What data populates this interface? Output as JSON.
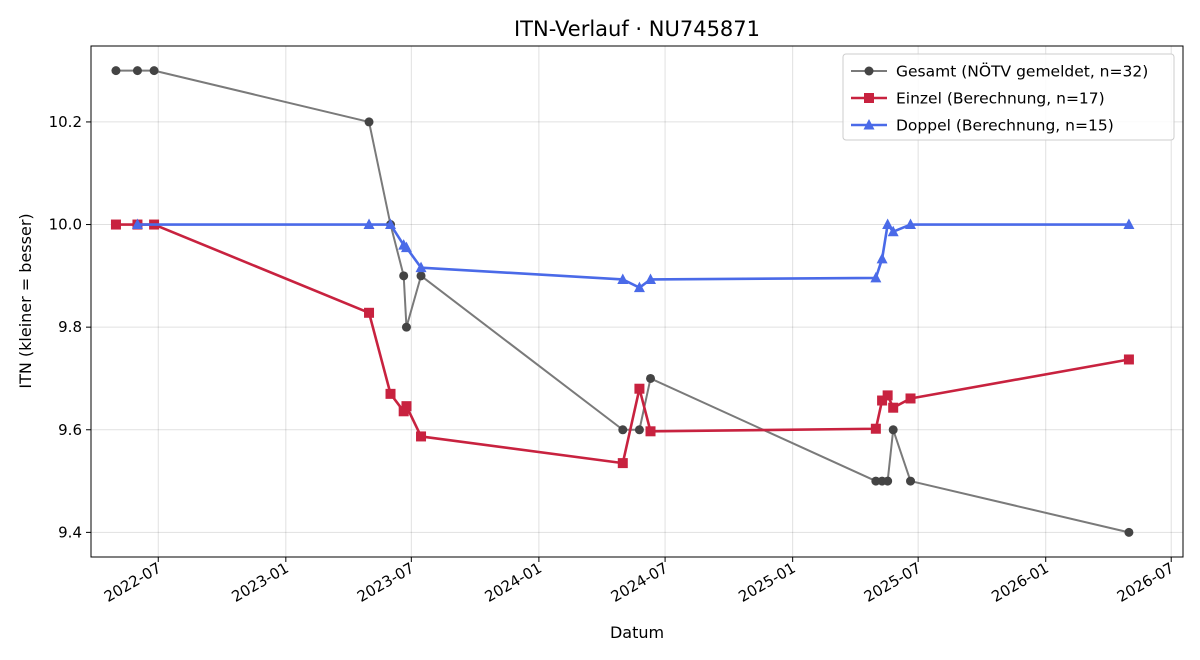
{
  "chart_data": {
    "type": "line",
    "title": "ITN-Verlauf · NU745871",
    "xlabel": "Datum",
    "ylabel": "ITN  (kleiner = besser)",
    "x_axis": "date",
    "xlim": [
      "2022-03-26",
      "2026-07-18"
    ],
    "ylim": [
      9.352,
      10.348
    ],
    "yticks": [
      "9.4",
      "9.6",
      "9.8",
      "10.0",
      "10.2"
    ],
    "xticks": [
      "2022-07",
      "2023-01",
      "2023-07",
      "2024-01",
      "2024-07",
      "2025-01",
      "2025-07",
      "2026-01",
      "2026-07"
    ],
    "grid": true,
    "legend_position": "top-right",
    "series": [
      {
        "name": "Gesamt (NÖTV gemeldet, n=32)",
        "color": "#555555",
        "marker": "circle",
        "points": [
          [
            "2022-05-01",
            10.3
          ],
          [
            "2022-06-01",
            10.3
          ],
          [
            "2022-06-25",
            10.3
          ],
          [
            "2023-05-01",
            10.2
          ],
          [
            "2023-06-01",
            10.0
          ],
          [
            "2023-06-20",
            9.9
          ],
          [
            "2023-06-24",
            9.8
          ],
          [
            "2023-07-15",
            9.9
          ],
          [
            "2024-05-01",
            9.6
          ],
          [
            "2024-05-25",
            9.6
          ],
          [
            "2024-06-10",
            9.7
          ],
          [
            "2025-05-01",
            9.5
          ],
          [
            "2025-05-10",
            9.5
          ],
          [
            "2025-05-18",
            9.5
          ],
          [
            "2025-05-26",
            9.6
          ],
          [
            "2025-06-20",
            9.5
          ],
          [
            "2026-05-01",
            9.4
          ]
        ]
      },
      {
        "name": "Einzel (Berechnung, n=17)",
        "color": "#c8223f",
        "marker": "square",
        "points": [
          [
            "2022-05-01",
            10.0
          ],
          [
            "2022-06-01",
            10.0
          ],
          [
            "2022-06-25",
            10.0
          ],
          [
            "2023-05-01",
            9.828
          ],
          [
            "2023-06-01",
            9.67
          ],
          [
            "2023-06-20",
            9.636
          ],
          [
            "2023-06-24",
            9.646
          ],
          [
            "2023-07-15",
            9.587
          ],
          [
            "2024-05-01",
            9.535
          ],
          [
            "2024-05-25",
            9.68
          ],
          [
            "2024-06-10",
            9.597
          ],
          [
            "2025-05-01",
            9.602
          ],
          [
            "2025-05-10",
            9.657
          ],
          [
            "2025-05-18",
            9.667
          ],
          [
            "2025-05-26",
            9.643
          ],
          [
            "2025-06-20",
            9.661
          ],
          [
            "2026-05-01",
            9.737
          ]
        ]
      },
      {
        "name": "Doppel (Berechnung, n=15)",
        "color": "#4a6ae8",
        "marker": "triangle",
        "points": [
          [
            "2022-06-01",
            10.0
          ],
          [
            "2023-05-01",
            10.0
          ],
          [
            "2023-06-01",
            10.0
          ],
          [
            "2023-06-20",
            9.96
          ],
          [
            "2023-06-24",
            9.955
          ],
          [
            "2023-07-15",
            9.916
          ],
          [
            "2024-05-01",
            9.893
          ],
          [
            "2024-05-25",
            9.877
          ],
          [
            "2024-06-10",
            9.893
          ],
          [
            "2025-05-01",
            9.896
          ],
          [
            "2025-05-10",
            9.933
          ],
          [
            "2025-05-18",
            10.0
          ],
          [
            "2025-05-26",
            9.986
          ],
          [
            "2025-06-20",
            10.0
          ],
          [
            "2026-05-01",
            10.0
          ]
        ]
      }
    ]
  }
}
